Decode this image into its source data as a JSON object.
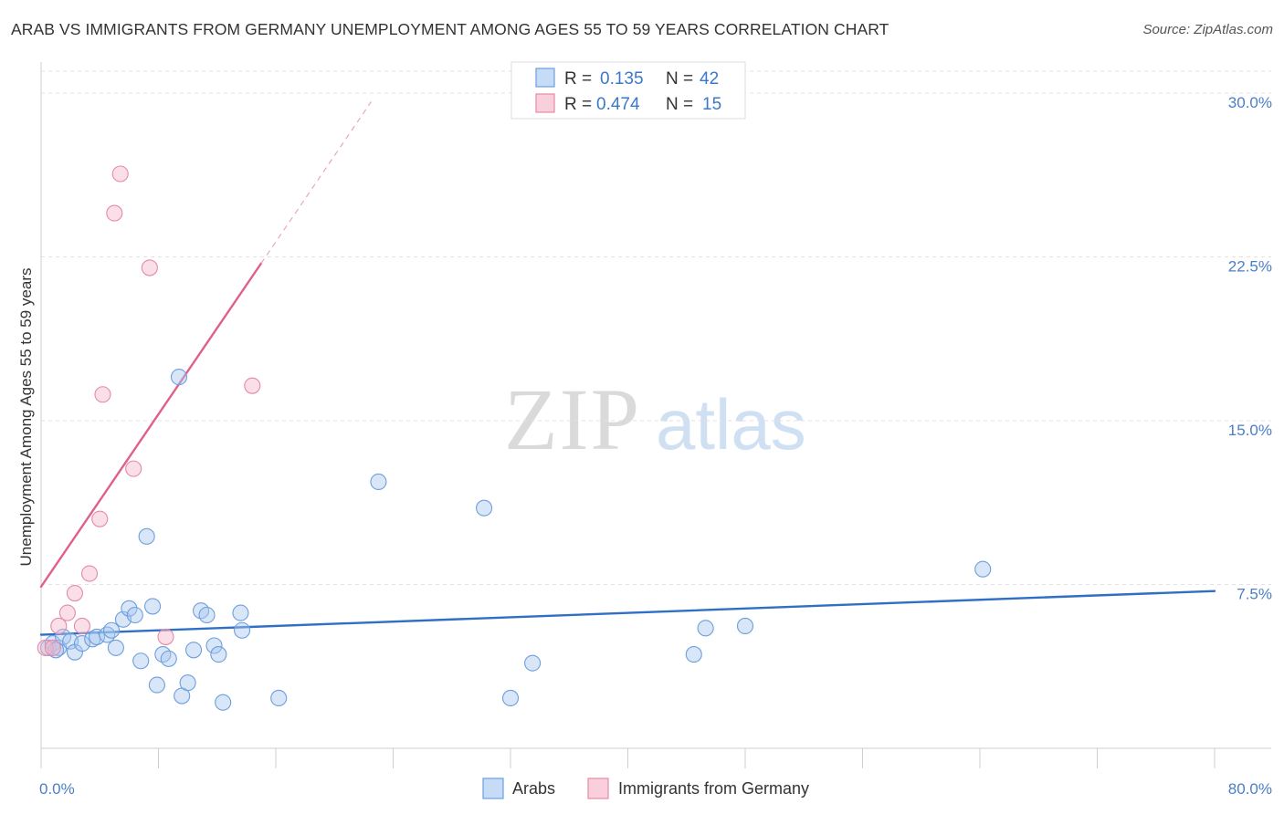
{
  "title": "ARAB VS IMMIGRANTS FROM GERMANY UNEMPLOYMENT AMONG AGES 55 TO 59 YEARS CORRELATION CHART",
  "source": "Source: ZipAtlas.com",
  "watermark": {
    "zip": "ZIP",
    "atlas": "atlas"
  },
  "chart_data": {
    "type": "scatter",
    "ylabel": "Unemployment Among Ages 55 to 59 years",
    "xlabel": "",
    "xlim": [
      0,
      80
    ],
    "ylim": [
      0,
      31
    ],
    "x_ticks": [
      {
        "value": 0,
        "label": "0.0%"
      },
      {
        "value": 80,
        "label": "80.0%"
      }
    ],
    "y_ticks": [
      {
        "value": 7.5,
        "label": "7.5%"
      },
      {
        "value": 15,
        "label": "15.0%"
      },
      {
        "value": 22.5,
        "label": "22.5%"
      },
      {
        "value": 30,
        "label": "30.0%"
      }
    ],
    "legend_top": [
      {
        "r_label": "R =",
        "r_value": "0.135",
        "n_label": "N =",
        "n_value": "42",
        "color": "#a9c8f0"
      },
      {
        "r_label": "R =",
        "r_value": "0.474",
        "n_label": "N =",
        "n_value": "15",
        "color": "#f7b8cc"
      }
    ],
    "series": [
      {
        "name": "Arabs",
        "color": "#a9c8f0",
        "stroke": "#6d9fdc",
        "trend_color": "#2f6fc6",
        "trend": {
          "x0": 0,
          "y0": 5.2,
          "x1": 80,
          "y1": 7.2,
          "dashed_to": null
        },
        "points": [
          [
            0.5,
            4.6
          ],
          [
            0.8,
            4.8
          ],
          [
            1.2,
            4.6
          ],
          [
            1.5,
            5.1
          ],
          [
            2.0,
            4.9
          ],
          [
            2.3,
            4.4
          ],
          [
            2.8,
            4.8
          ],
          [
            3.5,
            5.0
          ],
          [
            3.8,
            5.1
          ],
          [
            4.5,
            5.2
          ],
          [
            4.8,
            5.4
          ],
          [
            5.1,
            4.6
          ],
          [
            5.6,
            5.9
          ],
          [
            6.0,
            6.4
          ],
          [
            6.4,
            6.1
          ],
          [
            6.8,
            4.0
          ],
          [
            7.2,
            9.7
          ],
          [
            7.6,
            6.5
          ],
          [
            7.9,
            2.9
          ],
          [
            8.3,
            4.3
          ],
          [
            8.7,
            4.1
          ],
          [
            9.4,
            17.0
          ],
          [
            9.6,
            2.4
          ],
          [
            10.0,
            3.0
          ],
          [
            10.4,
            4.5
          ],
          [
            10.9,
            6.3
          ],
          [
            11.3,
            6.1
          ],
          [
            11.8,
            4.7
          ],
          [
            12.1,
            4.3
          ],
          [
            12.4,
            2.1
          ],
          [
            13.6,
            6.2
          ],
          [
            13.7,
            5.4
          ],
          [
            16.2,
            2.3
          ],
          [
            23.0,
            12.2
          ],
          [
            30.2,
            11.0
          ],
          [
            32.0,
            2.3
          ],
          [
            33.5,
            3.9
          ],
          [
            44.5,
            4.3
          ],
          [
            45.3,
            5.5
          ],
          [
            48.0,
            5.6
          ],
          [
            64.2,
            8.2
          ],
          [
            1.0,
            4.5
          ]
        ]
      },
      {
        "name": "Immigrants from Germany",
        "color": "#f7b8cc",
        "stroke": "#e58aa8",
        "trend_color": "#e0608a",
        "trend": {
          "x0": 0,
          "y0": 7.4,
          "x1": 15,
          "y1": 22.2,
          "dashed_to": {
            "x": 22.5,
            "y": 29.6
          }
        },
        "points": [
          [
            0.3,
            4.6
          ],
          [
            1.2,
            5.6
          ],
          [
            1.8,
            6.2
          ],
          [
            2.3,
            7.1
          ],
          [
            2.8,
            5.6
          ],
          [
            3.3,
            8.0
          ],
          [
            4.0,
            10.5
          ],
          [
            4.2,
            16.2
          ],
          [
            5.0,
            24.5
          ],
          [
            5.4,
            26.3
          ],
          [
            6.3,
            12.8
          ],
          [
            7.4,
            22.0
          ],
          [
            8.5,
            5.1
          ],
          [
            14.4,
            16.6
          ],
          [
            0.8,
            4.6
          ]
        ]
      }
    ],
    "legend_bottom": [
      "Arabs",
      "Immigrants from Germany"
    ]
  }
}
